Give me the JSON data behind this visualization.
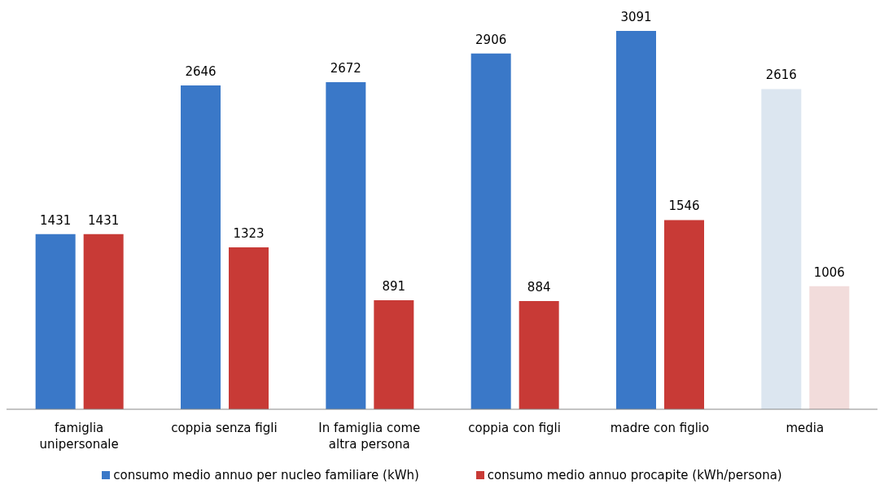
{
  "chart_data": {
    "type": "bar",
    "categories": [
      "famiglia unipersonale",
      "coppia senza figli",
      "In famiglia come altra persona",
      "coppia con figli",
      "madre con figlio",
      "media"
    ],
    "series": [
      {
        "name": "consumo medio annuo per nucleo familiare (kWh)",
        "color": "#3a78c8",
        "colors": [
          "#3a78c8",
          "#3a78c8",
          "#3a78c8",
          "#3a78c8",
          "#3a78c8",
          "#dce6f0"
        ],
        "values": [
          1431,
          2646,
          2672,
          2906,
          3091,
          2616
        ]
      },
      {
        "name": "consumo medio annuo procapite (kWh/persona)",
        "color": "#c83a36",
        "colors": [
          "#c83a36",
          "#c83a36",
          "#c83a36",
          "#c83a36",
          "#c83a36",
          "#f2dcdb"
        ],
        "values": [
          1431,
          1323,
          891,
          884,
          1546,
          1006
        ]
      }
    ],
    "data_labels": true,
    "legend": "bottom"
  }
}
